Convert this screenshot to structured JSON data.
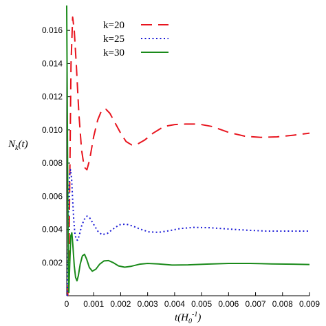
{
  "chart_data": {
    "type": "line",
    "title": "",
    "xlabel": "t(H_0^-1)",
    "ylabel": "N_k(t)",
    "xlim": [
      0,
      0.009
    ],
    "ylim": [
      0,
      0.0175
    ],
    "xticks": [
      "0",
      "0.001",
      "0.002",
      "0.003",
      "0.004",
      "0.005",
      "0.006",
      "0.007",
      "0.008",
      "0.009"
    ],
    "yticks": [
      "0.002",
      "0.004",
      "0.006",
      "0.008",
      "0.010",
      "0.012",
      "0.014",
      "0.016"
    ],
    "grid": false,
    "legend_position": "top-left",
    "series": [
      {
        "name": "k=20",
        "style": "dashed",
        "color": "#e8141e",
        "points": [
          [
            4e-05,
            0.0
          ],
          [
            8e-05,
            0.002
          ],
          [
            0.00012,
            0.008
          ],
          [
            0.00016,
            0.014
          ],
          [
            0.00022,
            0.0168
          ],
          [
            0.00028,
            0.016
          ],
          [
            0.00036,
            0.0138
          ],
          [
            0.00045,
            0.011
          ],
          [
            0.00055,
            0.0088
          ],
          [
            0.00065,
            0.00775
          ],
          [
            0.00075,
            0.0076
          ],
          [
            0.00085,
            0.0082
          ],
          [
            0.001,
            0.0096
          ],
          [
            0.00115,
            0.0106
          ],
          [
            0.0013,
            0.0112
          ],
          [
            0.00145,
            0.01125
          ],
          [
            0.0016,
            0.011
          ],
          [
            0.0018,
            0.0104
          ],
          [
            0.002,
            0.0098
          ],
          [
            0.0022,
            0.0093
          ],
          [
            0.0024,
            0.0091
          ],
          [
            0.0026,
            0.00912
          ],
          [
            0.0029,
            0.0094
          ],
          [
            0.0032,
            0.0098
          ],
          [
            0.0036,
            0.0102
          ],
          [
            0.004,
            0.01032
          ],
          [
            0.0044,
            0.01035
          ],
          [
            0.0049,
            0.01035
          ],
          [
            0.0054,
            0.0102
          ],
          [
            0.006,
            0.00985
          ],
          [
            0.0066,
            0.00962
          ],
          [
            0.0072,
            0.00955
          ],
          [
            0.0078,
            0.00958
          ],
          [
            0.0084,
            0.00968
          ],
          [
            0.009,
            0.0098
          ]
        ]
      },
      {
        "name": "k=25",
        "style": "dotted",
        "color": "#1a1ad6",
        "points": [
          [
            2e-05,
            0.0
          ],
          [
            5e-05,
            0.003
          ],
          [
            8e-05,
            0.006
          ],
          [
            0.00011,
            0.0074
          ],
          [
            0.00014,
            0.0076
          ],
          [
            0.00018,
            0.0071
          ],
          [
            0.00022,
            0.0058
          ],
          [
            0.00026,
            0.0046
          ],
          [
            0.0003,
            0.0038
          ],
          [
            0.00035,
            0.0034
          ],
          [
            0.0004,
            0.00335
          ],
          [
            0.00046,
            0.0036
          ],
          [
            0.00055,
            0.0042
          ],
          [
            0.00065,
            0.0046
          ],
          [
            0.00075,
            0.0048
          ],
          [
            0.00085,
            0.0047
          ],
          [
            0.001,
            0.0043
          ],
          [
            0.00115,
            0.0039
          ],
          [
            0.0013,
            0.00368
          ],
          [
            0.0015,
            0.00375
          ],
          [
            0.0017,
            0.004
          ],
          [
            0.00195,
            0.00428
          ],
          [
            0.0022,
            0.00432
          ],
          [
            0.00245,
            0.0042
          ],
          [
            0.00275,
            0.004
          ],
          [
            0.00305,
            0.00385
          ],
          [
            0.0034,
            0.00382
          ],
          [
            0.0038,
            0.00392
          ],
          [
            0.0042,
            0.00405
          ],
          [
            0.0047,
            0.00412
          ],
          [
            0.0053,
            0.0041
          ],
          [
            0.006,
            0.00402
          ],
          [
            0.0067,
            0.00395
          ],
          [
            0.0074,
            0.0039
          ],
          [
            0.0082,
            0.0039
          ],
          [
            0.009,
            0.0039
          ]
        ]
      },
      {
        "name": "k=30",
        "style": "solid",
        "color": "#1a8a1a",
        "points": [
          [
            0.0,
            0.0175
          ],
          [
            2e-05,
            0.012
          ],
          [
            4e-05,
            0.006
          ],
          [
            6e-05,
            0.0015
          ],
          [
            8e-05,
            0.0002
          ],
          [
            0.00011,
            0.0018
          ],
          [
            0.00015,
            0.0036
          ],
          [
            0.00019,
            0.0038
          ],
          [
            0.00023,
            0.003
          ],
          [
            0.00028,
            0.0018
          ],
          [
            0.00033,
            0.0011
          ],
          [
            0.00038,
            0.0009
          ],
          [
            0.00043,
            0.0012
          ],
          [
            0.0005,
            0.0019
          ],
          [
            0.00058,
            0.0024
          ],
          [
            0.00066,
            0.0025
          ],
          [
            0.00074,
            0.0022
          ],
          [
            0.00084,
            0.0017
          ],
          [
            0.00095,
            0.00148
          ],
          [
            0.00108,
            0.0016
          ],
          [
            0.00122,
            0.0019
          ],
          [
            0.00138,
            0.0021
          ],
          [
            0.00155,
            0.00212
          ],
          [
            0.00172,
            0.002
          ],
          [
            0.00192,
            0.0018
          ],
          [
            0.00215,
            0.00172
          ],
          [
            0.0024,
            0.00178
          ],
          [
            0.0027,
            0.0019
          ],
          [
            0.003,
            0.00195
          ],
          [
            0.0034,
            0.00192
          ],
          [
            0.0039,
            0.00185
          ],
          [
            0.0045,
            0.00186
          ],
          [
            0.0052,
            0.00191
          ],
          [
            0.006,
            0.00195
          ],
          [
            0.0068,
            0.00195
          ],
          [
            0.0076,
            0.00192
          ],
          [
            0.0084,
            0.0019
          ],
          [
            0.009,
            0.00188
          ]
        ]
      }
    ]
  }
}
